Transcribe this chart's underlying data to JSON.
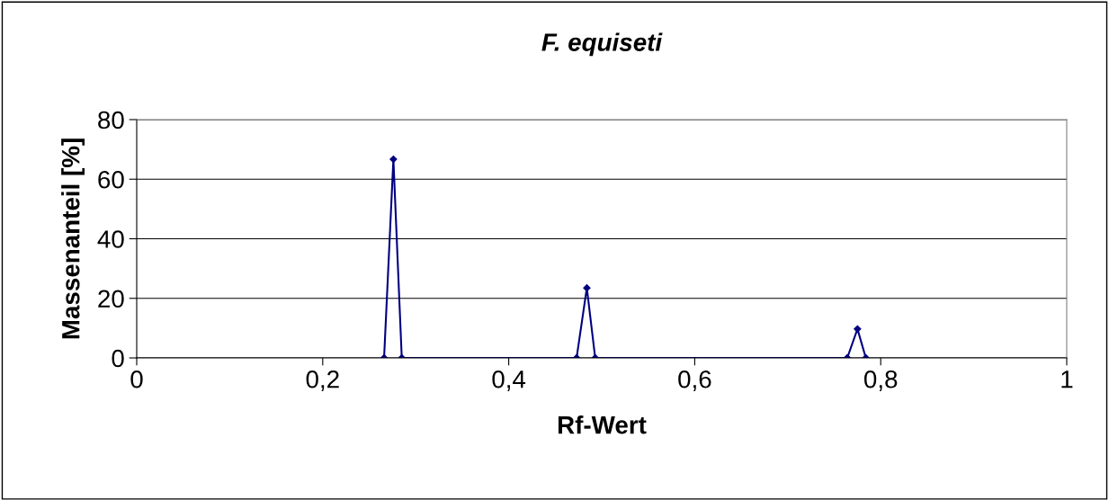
{
  "chart_data": {
    "type": "line",
    "title": "F. equiseti",
    "xlabel": "Rf-Wert",
    "ylabel": "Massenanteil [%]",
    "x": [
      0.266,
      0.276,
      0.285,
      0.473,
      0.484,
      0.493,
      0.764,
      0.775,
      0.784
    ],
    "series": [
      {
        "color": "#000080",
        "values": [
          0,
          66.7,
          0,
          0,
          23.5,
          0,
          0,
          9.7,
          0
        ]
      }
    ],
    "xlim": [
      0,
      1
    ],
    "ylim": [
      0,
      80
    ],
    "xticks": [
      0,
      {
        "value": 0.2,
        "label": "0,2"
      },
      {
        "value": 0.4,
        "label": "0,4"
      },
      {
        "value": 0.6,
        "label": "0,6"
      },
      {
        "value": 0.8,
        "label": "0,8"
      },
      1
    ],
    "yticks": [
      0,
      20,
      40,
      60,
      80
    ],
    "grid": "y",
    "marker": "diamond",
    "line_style": "solid",
    "legend": false
  }
}
